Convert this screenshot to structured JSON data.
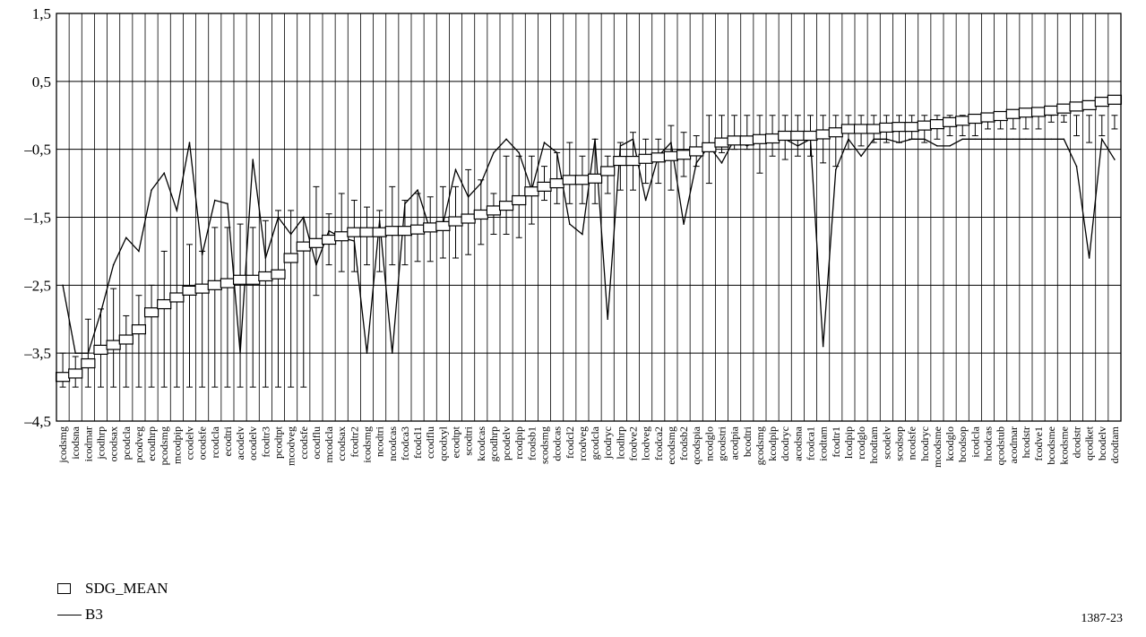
{
  "chart_data": {
    "type": "line",
    "ylim": [
      -4.5,
      1.5
    ],
    "yticks": [
      1.5,
      0.5,
      -0.5,
      -1.5,
      -2.5,
      -3.5,
      -4.5
    ],
    "ytick_labels": [
      "1,5",
      "0,5",
      "–0,5",
      "–1,5",
      "–2,5",
      "–3,5",
      "–4,5"
    ],
    "grid": "horizontal and vertical",
    "legend_position": "bottom-left",
    "categories": [
      "jcodsmg",
      "icodsna",
      "icodmar",
      "jcodhrp",
      "ocodsax",
      "pcodcla",
      "pcodveg",
      "ecodhrp",
      "pcodsmg",
      "mcodpip",
      "ccodelv",
      "ocodsfe",
      "rcodcla",
      "ecodtri",
      "acodelv",
      "ocodelv",
      "fcodtr3",
      "pcodtpt",
      "mcodveg",
      "ccodsfe",
      "ocodflu",
      "mcodcla",
      "ccodsax",
      "fcodtr2",
      "icodsmg",
      "ncodtri",
      "ncodcas",
      "fcodca3",
      "fcodcl1",
      "ccodflu",
      "qcodxyl",
      "ecodtpt",
      "scodtri",
      "kcodcas",
      "gcodhrp",
      "pcodelv",
      "rcodpip",
      "fcodsb1",
      "scodsmg",
      "dcodcas",
      "fcodcl2",
      "rcodveg",
      "gcodcla",
      "jcodryc",
      "lcodhrp",
      "fcodve2",
      "lcodveg",
      "fcodca2",
      "ecodsmg",
      "fcodsb2",
      "qcodspia",
      "ncodglo",
      "gcodstri",
      "acodpia",
      "bcodtri",
      "gcodsmg",
      "kcodpip",
      "dcodryc",
      "acodsna",
      "fcodca1",
      "icodtam",
      "fcodtr1",
      "lcodpip",
      "rcodglo",
      "hcodtam",
      "scodelv",
      "scodsop",
      "ncodsfe",
      "hcodryc",
      "mcodsme",
      "kcodglo",
      "bcodsop",
      "icodcla",
      "hcodcas",
      "qcodstub",
      "acodmar",
      "hcodstr",
      "fcodve1",
      "bcodsme",
      "kcodsme",
      "dcodstr",
      "qcodket",
      "bcodelv",
      "dcodtam"
    ],
    "series": [
      {
        "name": "SDG_MEAN",
        "marker": "open-rectangle",
        "values": [
          -3.85,
          -3.8,
          -3.65,
          -3.45,
          -3.38,
          -3.3,
          -3.15,
          -2.9,
          -2.78,
          -2.68,
          -2.58,
          -2.55,
          -2.5,
          -2.47,
          -2.42,
          -2.42,
          -2.37,
          -2.34,
          -2.1,
          -1.93,
          -1.88,
          -1.83,
          -1.78,
          -1.72,
          -1.72,
          -1.72,
          -1.7,
          -1.7,
          -1.68,
          -1.65,
          -1.63,
          -1.56,
          -1.52,
          -1.46,
          -1.4,
          -1.33,
          -1.25,
          -1.12,
          -1.05,
          -1.0,
          -0.95,
          -0.95,
          -0.93,
          -0.82,
          -0.67,
          -0.67,
          -0.64,
          -0.62,
          -0.6,
          -0.58,
          -0.53,
          -0.47,
          -0.4,
          -0.37,
          -0.37,
          -0.35,
          -0.34,
          -0.3,
          -0.3,
          -0.3,
          -0.28,
          -0.25,
          -0.2,
          -0.2,
          -0.2,
          -0.18,
          -0.17,
          -0.17,
          -0.15,
          -0.13,
          -0.1,
          -0.08,
          -0.05,
          -0.03,
          -0.01,
          0.02,
          0.04,
          0.05,
          0.07,
          0.1,
          0.13,
          0.15,
          0.2,
          0.23
        ],
        "err_low": [
          -4.0,
          -4.0,
          -4.0,
          -4.0,
          -4.0,
          -4.0,
          -4.0,
          -4.0,
          -4.0,
          -4.0,
          -4.0,
          -4.0,
          -4.0,
          -4.0,
          -4.0,
          -4.0,
          -4.0,
          -4.0,
          -4.0,
          -4.0,
          -2.65,
          -2.2,
          -2.3,
          -2.3,
          -2.2,
          -2.3,
          -2.2,
          -2.2,
          -2.15,
          -2.15,
          -2.1,
          -2.1,
          -2.05,
          -1.9,
          -1.75,
          -1.75,
          -1.8,
          -1.6,
          -1.25,
          -1.3,
          -1.3,
          -1.3,
          -1.3,
          -1.15,
          -1.1,
          -1.1,
          -1.0,
          -1.0,
          -1.1,
          -0.9,
          -0.75,
          -1.0,
          -0.55,
          -0.5,
          -0.5,
          -0.85,
          -0.6,
          -0.65,
          -0.6,
          -0.6,
          -0.7,
          -0.75,
          -0.5,
          -0.45,
          -0.4,
          -0.4,
          -0.4,
          -0.35,
          -0.4,
          -0.35,
          -0.3,
          -0.3,
          -0.3,
          -0.2,
          -0.2,
          -0.2,
          -0.2,
          -0.2,
          -0.1,
          -0.1,
          -0.3,
          -0.4,
          -0.3,
          -0.2
        ],
        "err_high": [
          -3.5,
          -3.55,
          -3.0,
          -2.85,
          -2.55,
          -2.95,
          -2.65,
          -2.5,
          -2.0,
          -1.5,
          -1.9,
          -2.0,
          -1.65,
          -1.65,
          -1.6,
          -1.65,
          -1.55,
          -1.4,
          -1.4,
          -1.5,
          -1.05,
          -1.45,
          -1.15,
          -1.25,
          -1.35,
          -1.4,
          -1.05,
          -1.25,
          -1.15,
          -1.2,
          -1.05,
          -1.05,
          -0.8,
          -0.95,
          -1.15,
          -0.6,
          -0.6,
          -0.6,
          -0.75,
          -0.55,
          -0.4,
          -0.6,
          -0.35,
          -0.6,
          -0.4,
          -0.25,
          -0.35,
          -0.35,
          -0.15,
          -0.25,
          -0.3,
          0.0,
          0.0,
          0.0,
          0.0,
          0.0,
          0.0,
          0.0,
          0.0,
          0.0,
          0.0,
          0.0,
          0.0,
          0.0,
          0.0,
          0.0,
          0.0,
          0.0,
          0.0,
          0.0,
          0.0,
          0.0,
          0.0,
          0.0,
          0.0,
          0.0,
          0.0,
          0.0,
          0.0,
          0.0,
          0.0,
          0.0,
          0.0,
          0.0
        ]
      },
      {
        "name": "B3",
        "values": [
          -2.5,
          -3.5,
          -3.5,
          -2.9,
          -2.2,
          -1.8,
          -2.0,
          -1.1,
          -0.85,
          -1.4,
          -0.4,
          -2.05,
          -1.25,
          -1.3,
          -3.5,
          -0.65,
          -2.1,
          -1.5,
          -1.75,
          -1.5,
          -2.2,
          -1.7,
          -1.8,
          -1.85,
          -3.5,
          -1.55,
          -3.5,
          -1.3,
          -1.1,
          -1.7,
          -1.6,
          -0.8,
          -1.2,
          -1.0,
          -0.55,
          -0.35,
          -0.55,
          -1.1,
          -0.4,
          -0.55,
          -1.6,
          -1.75,
          -0.35,
          -3.0,
          -0.45,
          -0.35,
          -1.25,
          -0.6,
          -0.4,
          -1.6,
          -0.7,
          -0.45,
          -0.7,
          -0.35,
          -0.45,
          -0.35,
          -0.35,
          -0.35,
          -0.45,
          -0.35,
          -3.4,
          -0.8,
          -0.35,
          -0.6,
          -0.35,
          -0.35,
          -0.4,
          -0.35,
          -0.35,
          -0.45,
          -0.45,
          -0.35,
          -0.35,
          -0.35,
          -0.35,
          -0.35,
          -0.35,
          -0.35,
          -0.35,
          -0.35,
          -0.75,
          -2.1,
          -0.35,
          -0.65
        ]
      }
    ]
  },
  "legend": {
    "item1": "SDG_MEAN",
    "item2": "B3"
  },
  "figure_id": "1387-23"
}
